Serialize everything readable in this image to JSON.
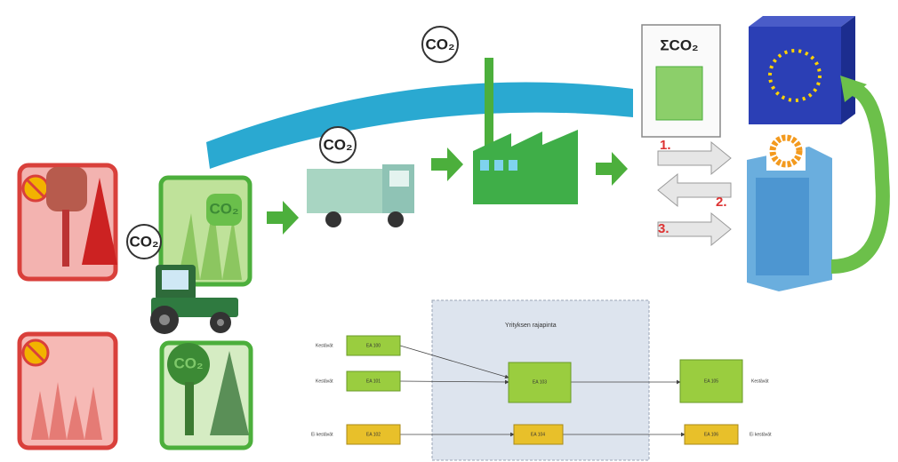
{
  "co2_labels": [
    "CO₂",
    "CO₂",
    "CO₂",
    "CO₂",
    "CO₂"
  ],
  "sum_label": "ΣCO₂",
  "steps": [
    "1.",
    "2.",
    "3."
  ],
  "boundary": {
    "title": "Yrityksen rajapinta"
  },
  "flow": {
    "inputs": [
      {
        "label": "Kestävät",
        "box": "EA 100"
      },
      {
        "label": "Kestävät",
        "box": "EA 101"
      },
      {
        "label": "Ei kestävät",
        "box": "EA 102"
      }
    ],
    "inside": [
      "EA 103",
      "EA 104"
    ],
    "outputs": [
      {
        "label": "Kestävät",
        "box": "EA 105"
      },
      {
        "label": "Ei kestävät",
        "box": "EA 106"
      }
    ]
  }
}
